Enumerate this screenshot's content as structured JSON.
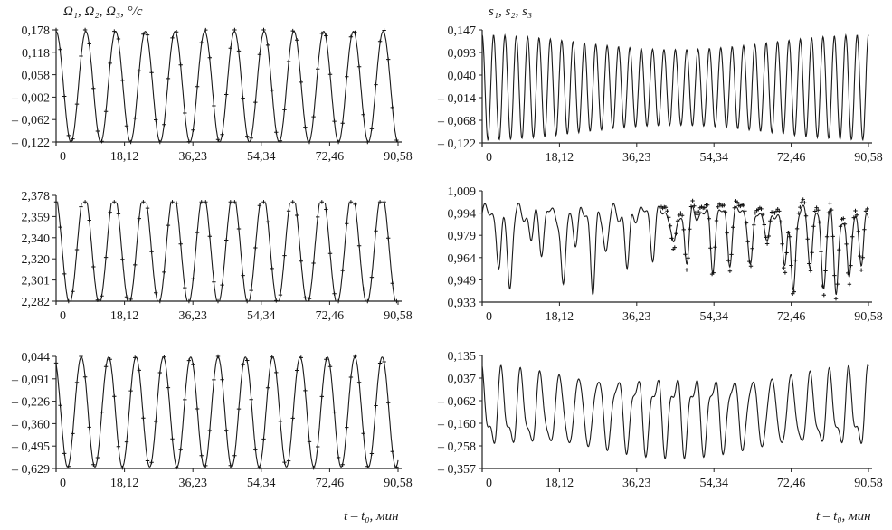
{
  "figure": {
    "left_column_title": "Ω₁, Ω₂, Ω₃, °/c",
    "right_column_title": "s₁, s₂, s₃",
    "left_xlabel": "t – t₀, мин",
    "right_xlabel": "t – t₀, мин"
  },
  "chart_data": [
    {
      "id": "omega1",
      "type": "line",
      "title": "Ω₁, Ω₂, Ω₃, °/c",
      "xlabel": "",
      "x_ticks": [
        "0",
        "18,12",
        "36,23",
        "54,34",
        "72,46",
        "90,58"
      ],
      "y_ticks": [
        "0,178",
        "0,118",
        "0,058",
        "– 0,002",
        "– 0,062",
        "– 0,122"
      ],
      "xlim": [
        0,
        90.58
      ],
      "ylim": [
        -0.122,
        0.178
      ],
      "series": [
        {
          "style": "line",
          "kind": "sine",
          "periods": 11.5,
          "phase": 0.0,
          "amplitude": 0.148,
          "offset": 0.026
        },
        {
          "style": "markers",
          "marker": "+",
          "kind": "sine",
          "periods": 11.5,
          "phase": 0.0,
          "amplitude": 0.152,
          "offset": 0.028
        }
      ]
    },
    {
      "id": "s1",
      "type": "line",
      "title": "s₁, s₂, s₃",
      "xlabel": "",
      "x_ticks": [
        "0",
        "18,12",
        "36,23",
        "54,34",
        "72,46",
        "90,58"
      ],
      "y_ticks": [
        "0,147",
        "0,093",
        "0,040",
        "– 0,014",
        "– 0,068",
        "– 0,122"
      ],
      "xlim": [
        0,
        90.58
      ],
      "ylim": [
        -0.122,
        0.147
      ],
      "series": [
        {
          "style": "line",
          "kind": "beat",
          "periods": 34,
          "phase": 0.0,
          "amplitude": 0.125,
          "offset": 0.01,
          "envelope_min": 0.72
        }
      ]
    },
    {
      "id": "omega2",
      "type": "line",
      "title": "",
      "xlabel": "",
      "x_ticks": [
        "0",
        "18,12",
        "36,23",
        "54,34",
        "72,46",
        "90,58"
      ],
      "y_ticks": [
        "2,378",
        "2,359",
        "2,340",
        "2,320",
        "2,301",
        "2,282"
      ],
      "xlim": [
        0,
        90.58
      ],
      "ylim": [
        2.282,
        2.378
      ],
      "series": [
        {
          "style": "line",
          "kind": "clipped",
          "periods": 11.5,
          "phase": 0.3,
          "amplitude": 0.05,
          "offset": 2.33,
          "clip_top": 2.371
        },
        {
          "style": "markers",
          "marker": "+",
          "kind": "clipped",
          "periods": 11.5,
          "phase": 0.3,
          "amplitude": 0.05,
          "offset": 2.33,
          "clip_top": 2.372
        }
      ]
    },
    {
      "id": "s2",
      "type": "line",
      "title": "",
      "xlabel": "",
      "x_ticks": [
        "0",
        "18,12",
        "36,23",
        "54,34",
        "72,46",
        "90,58"
      ],
      "y_ticks": [
        "1,009",
        "0,994",
        "0,979",
        "0,964",
        "0,949",
        "0,933"
      ],
      "xlim": [
        0,
        90.58
      ],
      "ylim": [
        0.933,
        1.009
      ],
      "series": [
        {
          "style": "line",
          "kind": "dips",
          "base": 0.994,
          "spikes": [
            [
              4,
              0.955
            ],
            [
              6.5,
              0.943
            ],
            [
              11.5,
              0.975
            ],
            [
              14,
              0.97
            ],
            [
              19,
              0.94
            ],
            [
              22,
              0.975
            ],
            [
              26,
              0.94
            ],
            [
              29,
              0.968
            ],
            [
              34,
              0.955
            ],
            [
              40,
              0.967
            ],
            [
              45,
              0.968
            ],
            [
              48,
              0.962
            ],
            [
              54,
              0.958
            ],
            [
              58,
              0.963
            ],
            [
              63,
              0.957
            ],
            [
              67,
              0.972
            ],
            [
              71,
              0.954
            ],
            [
              73,
              0.945
            ],
            [
              77,
              0.96
            ],
            [
              80,
              0.945
            ],
            [
              83,
              0.938
            ],
            [
              86,
              0.945
            ],
            [
              89,
              0.958
            ]
          ]
        },
        {
          "style": "markers",
          "marker": "+",
          "kind": "dips",
          "x_from": 42,
          "base": 0.998,
          "spikes": [
            [
              45,
              0.962
            ],
            [
              48,
              0.958
            ],
            [
              54,
              0.955
            ],
            [
              58,
              0.96
            ],
            [
              63,
              0.955
            ],
            [
              67,
              0.97
            ],
            [
              71,
              0.948
            ],
            [
              73,
              0.94
            ],
            [
              77,
              0.958
            ],
            [
              80,
              0.94
            ],
            [
              83,
              0.935
            ],
            [
              86,
              0.94
            ],
            [
              89,
              0.955
            ]
          ]
        }
      ]
    },
    {
      "id": "omega3",
      "type": "line",
      "title": "",
      "xlabel": "t – t₀, мин",
      "x_ticks": [
        "0",
        "18,12",
        "36,23",
        "54,34",
        "72,46",
        "90,58"
      ],
      "y_ticks": [
        "0,044",
        "– 0,091",
        "– 0,226",
        "– 0,360",
        "– 0,495",
        "– 0,629"
      ],
      "xlim": [
        0,
        90.58
      ],
      "ylim": [
        -0.629,
        0.044
      ],
      "series": [
        {
          "style": "line",
          "kind": "sine",
          "periods": 12.5,
          "phase": 0.5,
          "amplitude": 0.33,
          "offset": -0.29
        },
        {
          "style": "markers",
          "marker": "+",
          "kind": "sine",
          "periods": 12.5,
          "phase": 0.5,
          "amplitude": 0.335,
          "offset": -0.29
        }
      ]
    },
    {
      "id": "s3",
      "type": "line",
      "title": "",
      "xlabel": "t – t₀, мин",
      "x_ticks": [
        "0",
        "18,12",
        "36,23",
        "54,34",
        "72,46",
        "90,58"
      ],
      "y_ticks": [
        "0,135",
        "0,037",
        "– 0,062",
        "– 0,160",
        "– 0,258",
        "– 0,357"
      ],
      "xlim": [
        0,
        90.58
      ],
      "ylim": [
        -0.357,
        0.135
      ],
      "series": [
        {
          "style": "line",
          "kind": "modulated",
          "periods": 20,
          "phase": 0.0,
          "amplitude": 0.19,
          "offset": -0.11,
          "mod_periods": 1.0
        }
      ]
    }
  ]
}
